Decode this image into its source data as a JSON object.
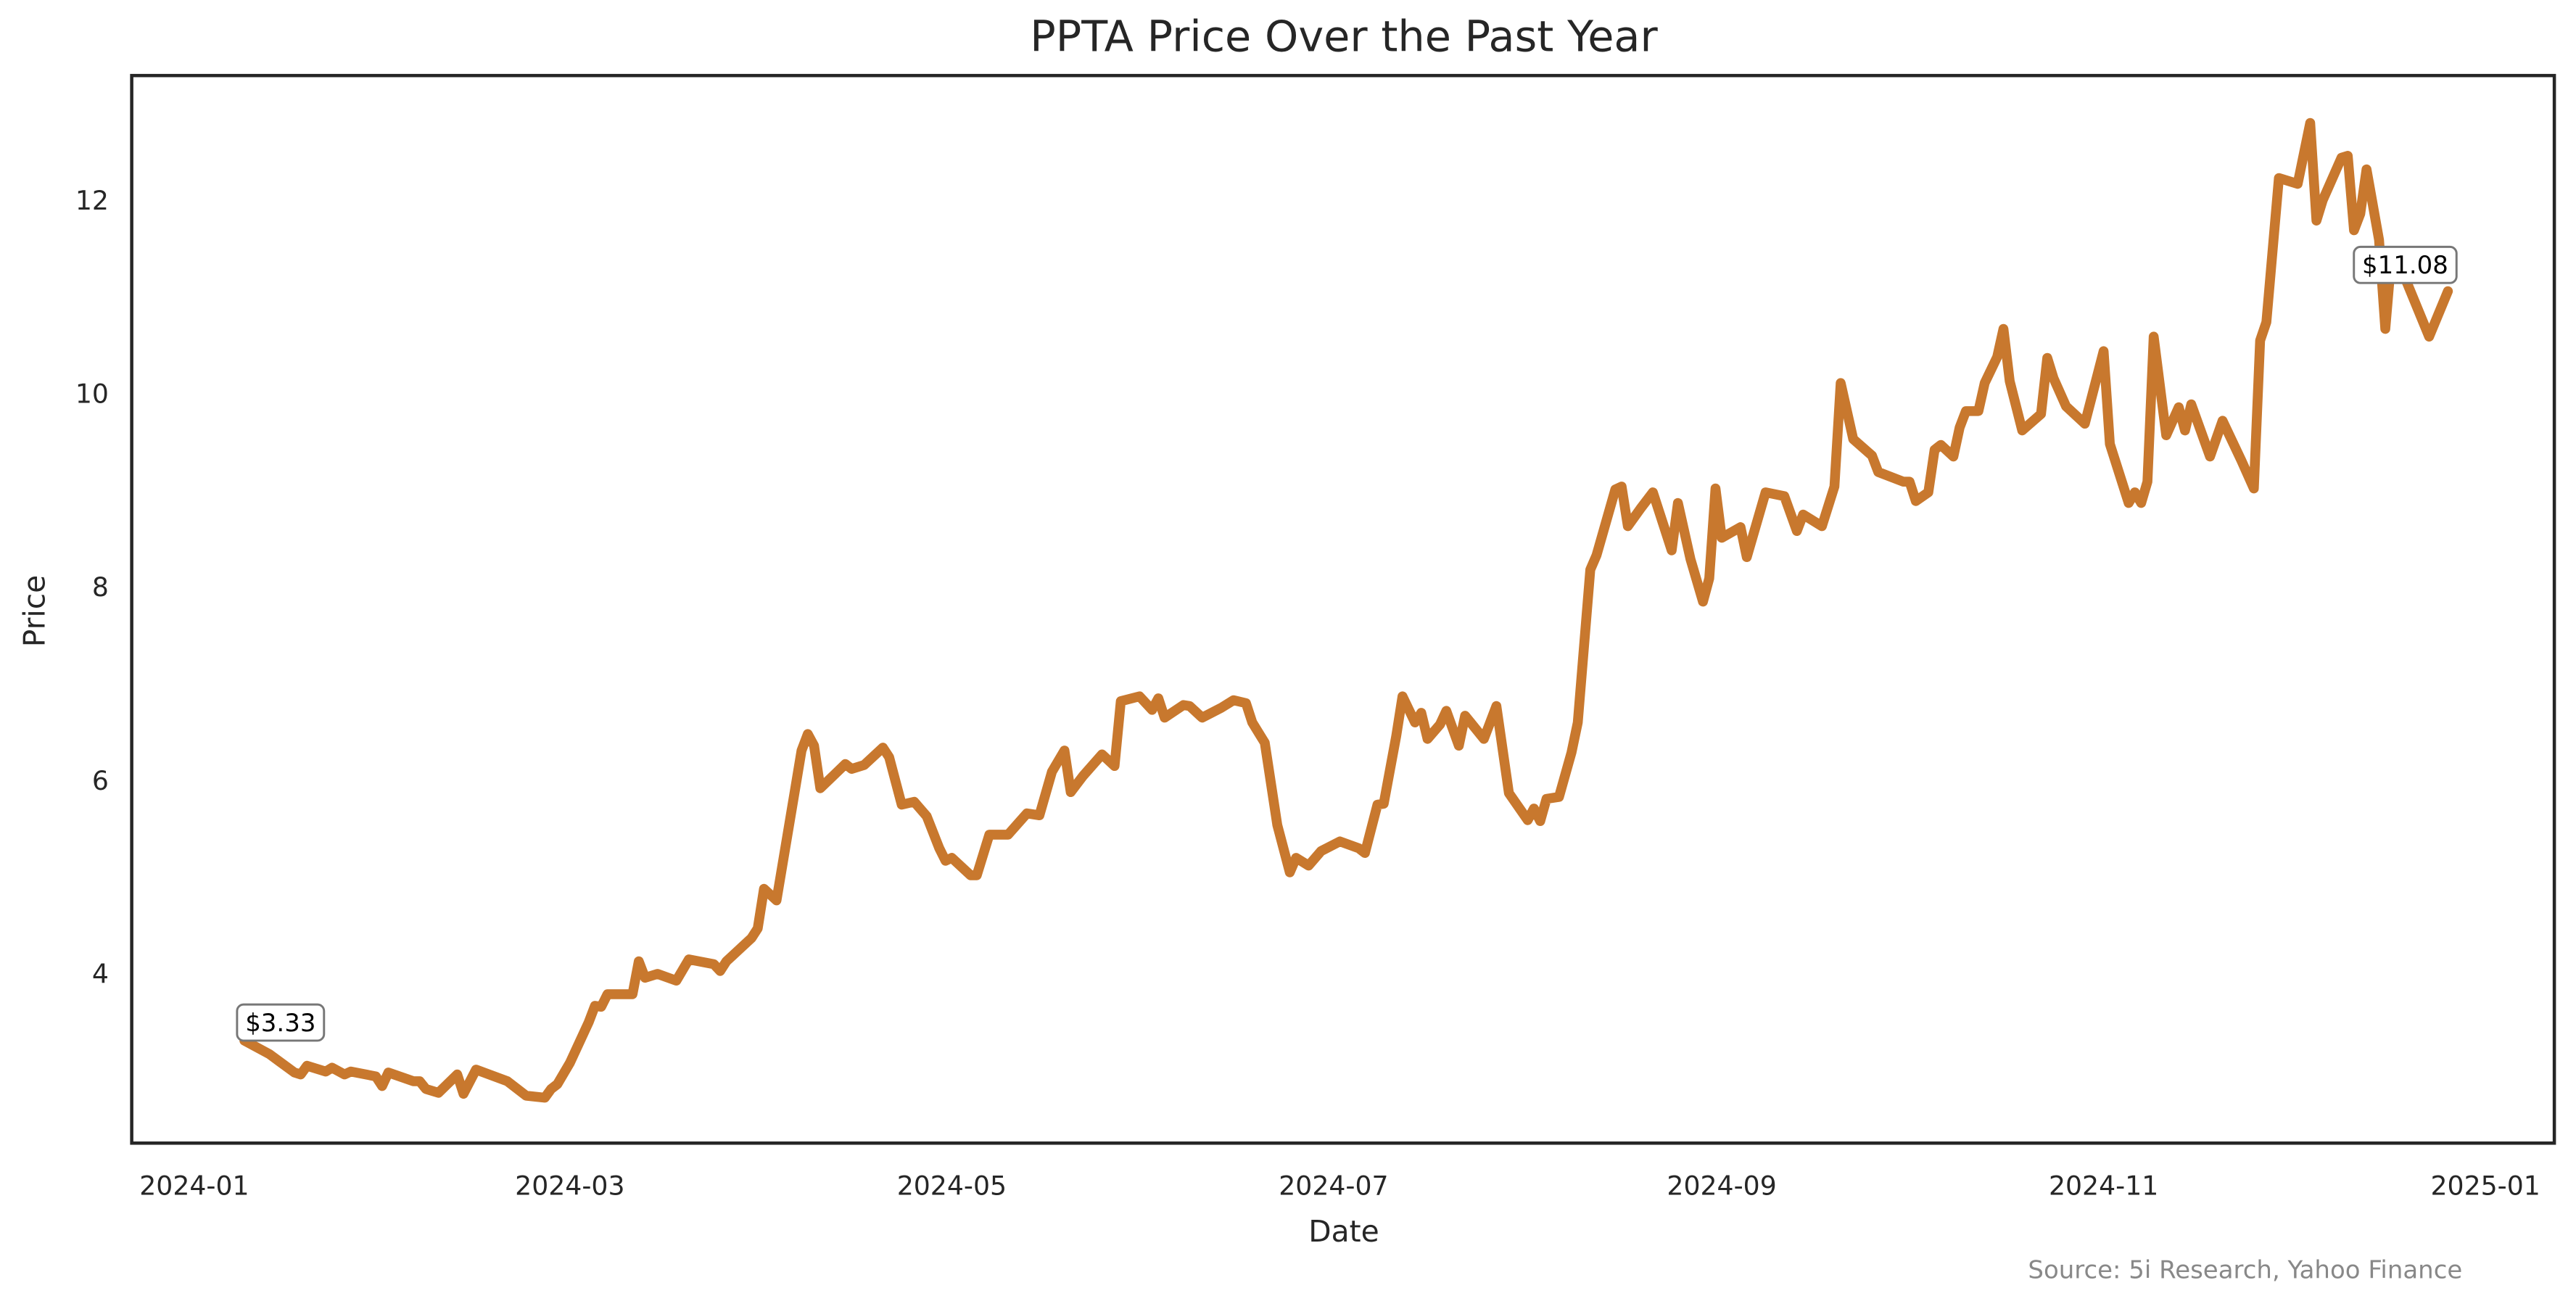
{
  "chart_data": {
    "type": "line",
    "title": "PPTA Price Over the Past Year",
    "xlabel": "Date",
    "ylabel": "Price",
    "source": "Source: 5i Research, Yahoo Finance",
    "color": "#c8782e",
    "grid": false,
    "xlim": [
      "2023-12-22",
      "2025-01-12"
    ],
    "xticks": [
      "2024-01",
      "2024-03",
      "2024-05",
      "2024-07",
      "2024-09",
      "2024-11",
      "2025-01"
    ],
    "ylim": [
      2.27,
      13.31
    ],
    "yticks": [
      4,
      6,
      8,
      10,
      12
    ],
    "x": [
      "2024-01-09",
      "2024-01-13",
      "2024-01-17",
      "2024-01-18",
      "2024-01-19",
      "2024-01-22",
      "2024-01-23",
      "2024-01-25",
      "2024-01-26",
      "2024-01-30",
      "2024-01-31",
      "2024-02-01",
      "2024-02-05",
      "2024-02-06",
      "2024-02-07",
      "2024-02-09",
      "2024-02-12",
      "2024-02-13",
      "2024-02-15",
      "2024-02-20",
      "2024-02-23",
      "2024-02-26",
      "2024-02-27",
      "2024-02-28",
      "2024-03-01",
      "2024-03-04",
      "2024-03-05",
      "2024-03-06",
      "2024-03-07",
      "2024-03-11",
      "2024-03-12",
      "2024-03-13",
      "2024-03-15",
      "2024-03-18",
      "2024-03-20",
      "2024-03-24",
      "2024-03-25",
      "2024-03-26",
      "2024-03-30",
      "2024-03-31",
      "2024-04-01",
      "2024-04-03",
      "2024-04-06",
      "2024-04-07",
      "2024-04-08",
      "2024-04-09",
      "2024-04-10",
      "2024-04-14",
      "2024-04-15",
      "2024-04-17",
      "2024-04-20",
      "2024-04-21",
      "2024-04-23",
      "2024-04-25",
      "2024-04-27",
      "2024-04-29",
      "2024-04-30",
      "2024-05-01",
      "2024-05-04",
      "2024-05-05",
      "2024-05-07",
      "2024-05-10",
      "2024-05-13",
      "2024-05-15",
      "2024-05-17",
      "2024-05-19",
      "2024-05-20",
      "2024-05-22",
      "2024-05-25",
      "2024-05-27",
      "2024-05-28",
      "2024-05-31",
      "2024-06-02",
      "2024-06-03",
      "2024-06-04",
      "2024-06-07",
      "2024-06-08",
      "2024-06-10",
      "2024-06-13",
      "2024-06-15",
      "2024-06-17",
      "2024-06-18",
      "2024-06-20",
      "2024-06-22",
      "2024-06-24",
      "2024-06-25",
      "2024-06-27",
      "2024-06-29",
      "2024-07-02",
      "2024-07-05",
      "2024-07-06",
      "2024-07-08",
      "2024-07-09",
      "2024-07-11",
      "2024-07-12",
      "2024-07-14",
      "2024-07-15",
      "2024-07-16",
      "2024-07-18",
      "2024-07-19",
      "2024-07-21",
      "2024-07-22",
      "2024-07-25",
      "2024-07-27",
      "2024-07-29",
      "2024-08-01",
      "2024-08-02",
      "2024-08-03",
      "2024-08-04",
      "2024-08-06",
      "2024-08-08",
      "2024-08-09",
      "2024-08-11",
      "2024-08-12",
      "2024-08-15",
      "2024-08-16",
      "2024-08-17",
      "2024-08-19",
      "2024-08-21",
      "2024-08-24",
      "2024-08-25",
      "2024-08-27",
      "2024-08-29",
      "2024-08-30",
      "2024-08-31",
      "2024-09-01",
      "2024-09-04",
      "2024-09-05",
      "2024-09-08",
      "2024-09-11",
      "2024-09-13",
      "2024-09-14",
      "2024-09-17",
      "2024-09-19",
      "2024-09-20",
      "2024-09-22",
      "2024-09-25",
      "2024-09-26",
      "2024-09-30",
      "2024-10-01",
      "2024-10-02",
      "2024-10-04",
      "2024-10-05",
      "2024-10-06",
      "2024-10-08",
      "2024-10-09",
      "2024-10-10",
      "2024-10-12",
      "2024-10-13",
      "2024-10-15",
      "2024-10-16",
      "2024-10-17",
      "2024-10-19",
      "2024-10-22",
      "2024-10-23",
      "2024-10-24",
      "2024-10-26",
      "2024-10-29",
      "2024-11-01",
      "2024-11-02",
      "2024-11-05",
      "2024-11-06",
      "2024-11-07",
      "2024-11-08",
      "2024-11-09",
      "2024-11-11",
      "2024-11-13",
      "2024-11-14",
      "2024-11-15",
      "2024-11-18",
      "2024-11-20",
      "2024-11-23",
      "2024-11-25",
      "2024-11-26",
      "2024-11-27",
      "2024-11-29",
      "2024-12-02",
      "2024-12-04",
      "2024-12-05",
      "2024-12-06",
      "2024-12-09",
      "2024-12-10",
      "2024-12-11",
      "2024-12-12",
      "2024-12-13",
      "2024-12-15",
      "2024-12-16",
      "2024-12-17",
      "2024-12-19",
      "2024-12-23",
      "2024-12-26"
    ],
    "values": [
      3.33,
      3.19,
      3.0,
      2.98,
      3.07,
      3.01,
      3.05,
      2.98,
      3.01,
      2.96,
      2.86,
      3.0,
      2.91,
      2.91,
      2.83,
      2.79,
      2.98,
      2.78,
      3.03,
      2.91,
      2.76,
      2.74,
      2.83,
      2.88,
      3.1,
      3.52,
      3.69,
      3.68,
      3.81,
      3.81,
      4.15,
      3.98,
      4.02,
      3.95,
      4.17,
      4.12,
      4.05,
      4.15,
      4.39,
      4.49,
      4.9,
      4.78,
      5.94,
      6.33,
      6.5,
      6.38,
      5.94,
      6.19,
      6.14,
      6.18,
      6.36,
      6.26,
      5.77,
      5.8,
      5.65,
      5.32,
      5.19,
      5.22,
      5.04,
      5.04,
      5.46,
      5.46,
      5.68,
      5.66,
      6.11,
      6.33,
      5.9,
      6.07,
      6.29,
      6.17,
      6.84,
      6.89,
      6.75,
      6.87,
      6.67,
      6.8,
      6.79,
      6.67,
      6.77,
      6.85,
      6.82,
      6.62,
      6.41,
      5.56,
      5.07,
      5.22,
      5.14,
      5.29,
      5.39,
      5.32,
      5.27,
      5.77,
      5.78,
      6.48,
      6.89,
      6.62,
      6.72,
      6.45,
      6.6,
      6.74,
      6.38,
      6.69,
      6.45,
      6.79,
      5.89,
      5.61,
      5.73,
      5.6,
      5.83,
      5.85,
      6.31,
      6.62,
      8.2,
      8.35,
      9.03,
      9.06,
      8.65,
      8.83,
      9.0,
      8.4,
      8.89,
      8.31,
      7.87,
      8.11,
      9.04,
      8.53,
      8.64,
      8.33,
      9.0,
      8.96,
      8.6,
      8.77,
      8.65,
      9.06,
      10.13,
      9.55,
      9.38,
      9.21,
      9.11,
      9.11,
      8.91,
      9.0,
      9.44,
      9.49,
      9.37,
      9.67,
      9.84,
      9.84,
      10.13,
      10.4,
      10.69,
      10.15,
      9.64,
      9.81,
      10.39,
      10.18,
      9.89,
      9.71,
      10.46,
      9.5,
      8.89,
      9.0,
      8.89,
      9.11,
      10.61,
      9.59,
      9.88,
      9.64,
      9.91,
      9.37,
      9.74,
      9.33,
      9.04,
      10.57,
      10.76,
      12.25,
      12.19,
      12.82,
      11.81,
      12.02,
      12.46,
      12.48,
      11.71,
      11.88,
      12.34,
      11.61,
      10.69,
      11.45,
      11.24,
      10.61,
      11.08
    ],
    "annotations": [
      {
        "x": "2024-01-09",
        "y": 3.33,
        "label": "$3.33"
      },
      {
        "x": "2024-12-26",
        "y": 11.08,
        "label": "$11.08"
      }
    ]
  }
}
